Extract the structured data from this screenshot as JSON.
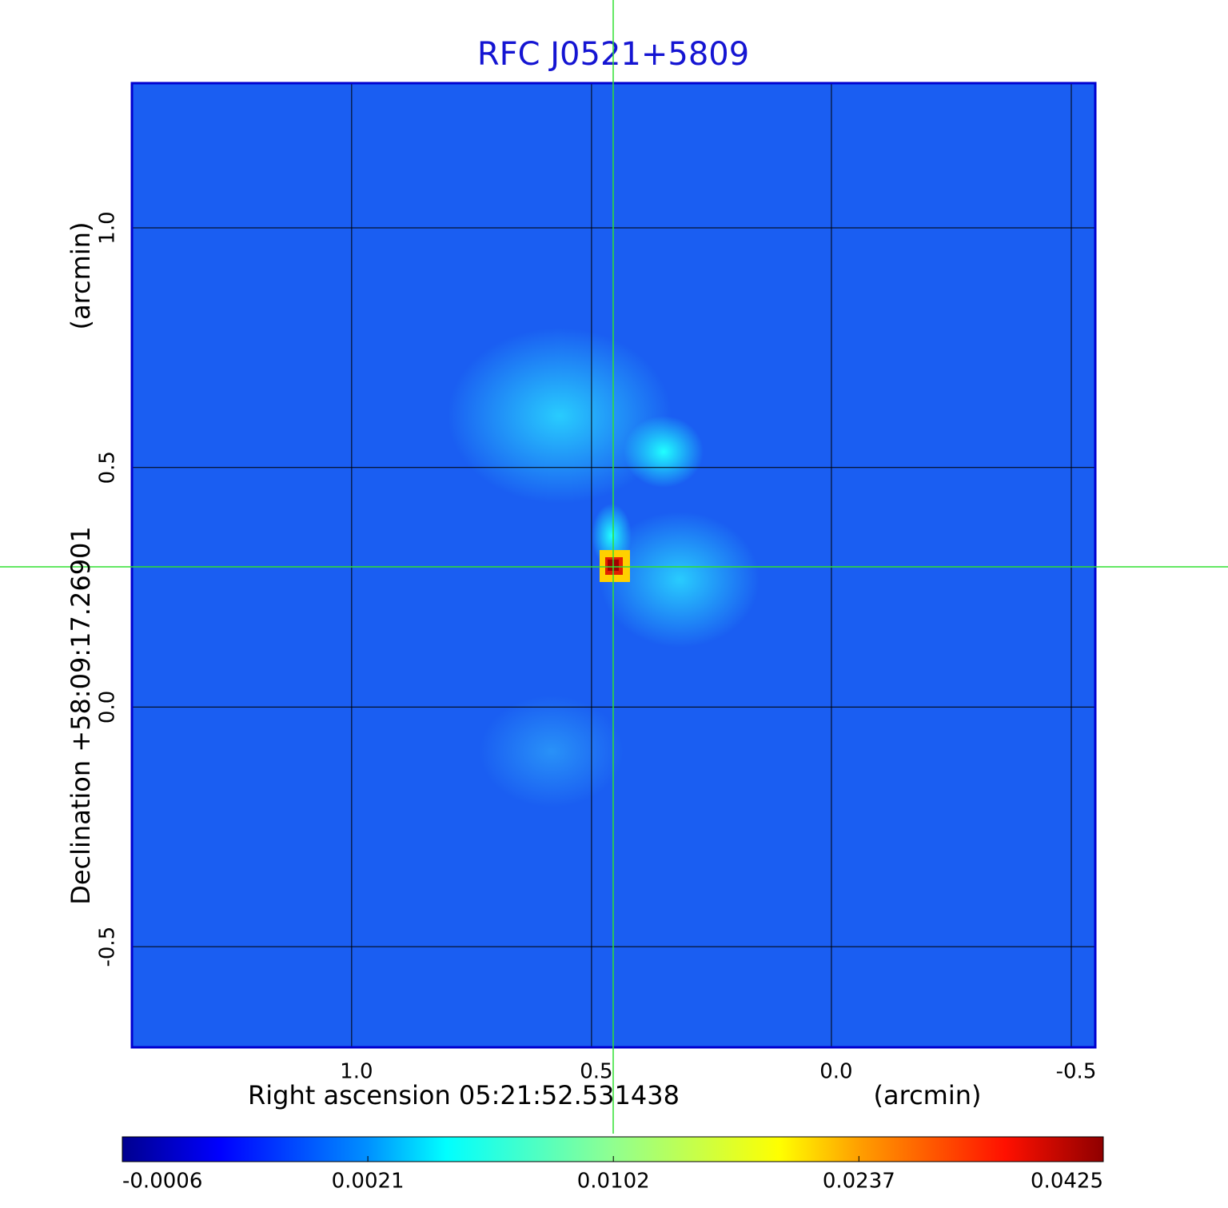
{
  "chart_data": {
    "type": "image",
    "title": "RFC J0521+5809",
    "xlabel": "Right ascension  05:21:52.531438",
    "xunit": "(arcmin)",
    "ylabel": "Declination  +58:09:17.26901",
    "yunit": "(arcmin)",
    "xlim": [
      1.458,
      -0.55
    ],
    "ylim": [
      -0.71,
      1.302
    ],
    "xticks": [
      {
        "value": 1,
        "label": "1.0"
      },
      0.5,
      {
        "value": 0,
        "label": "0.0"
      },
      -0.5
    ],
    "yticks": [
      {
        "value": 1,
        "label": "1.0"
      },
      0.5,
      {
        "value": 0,
        "label": "0.0"
      },
      -0.5
    ],
    "grid": true,
    "colorbar": {
      "lim": [
        -0.0006,
        0.0425
      ],
      "scale": "sqrt",
      "ticks": [
        -0.0006,
        0.0021,
        0.0102,
        0.0237,
        0.0425
      ]
    }
  }
}
